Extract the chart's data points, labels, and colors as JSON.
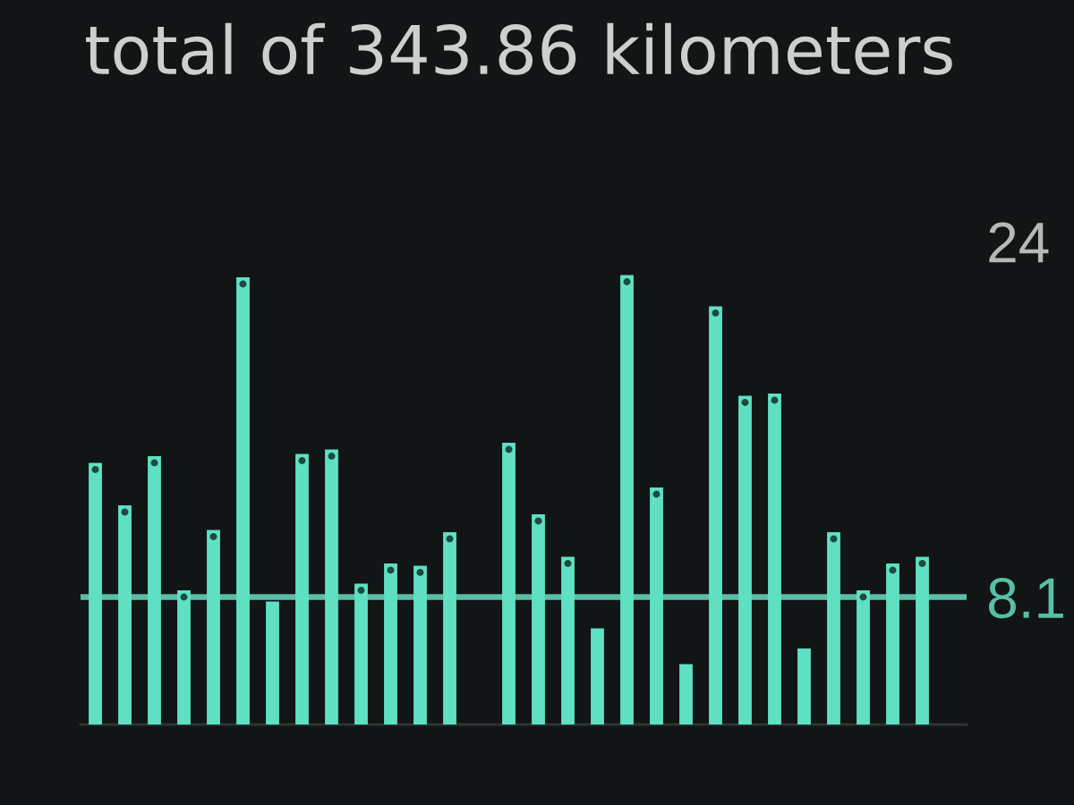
{
  "chart_data": {
    "type": "bar",
    "title": "total of 343.86 kilometers",
    "categories": [
      null,
      null,
      null,
      null,
      null,
      null,
      null,
      null,
      null,
      null,
      null,
      null,
      null,
      null,
      null,
      null,
      null,
      null,
      null,
      null,
      null,
      null,
      null,
      null,
      null,
      null,
      null,
      null,
      null,
      null
    ],
    "series": [
      {
        "color": "#5fe0c3",
        "values": [
          14.1,
          12.2,
          14.4,
          8.4,
          11.1,
          22.4,
          7.9,
          14.5,
          14.7,
          8.7,
          9.6,
          9.5,
          11.0,
          null,
          15.0,
          11.8,
          9.9,
          6.7,
          22.5,
          13.0,
          5.1,
          21.1,
          17.1,
          17.2,
          5.8,
          11.0,
          8.4,
          9.6,
          9.9,
          null
        ]
      },
      {
        "type": "scatter",
        "color": "#1d4a40",
        "values": [
          13.8,
          11.9,
          14.1,
          8.1,
          10.8,
          22.1,
          null,
          14.2,
          14.4,
          8.4,
          9.3,
          9.2,
          10.7,
          null,
          14.7,
          11.5,
          9.6,
          null,
          22.2,
          12.7,
          null,
          20.8,
          16.8,
          16.9,
          null,
          10.7,
          8.1,
          9.3,
          9.6,
          null
        ]
      }
    ],
    "marker": "circle",
    "ylim": [
      2.4,
      24
    ],
    "yticks": [
      8.1,
      24
    ],
    "ref_lines": [
      {
        "axis": "y",
        "value": 8.1,
        "color": "#58bfa6"
      }
    ]
  }
}
